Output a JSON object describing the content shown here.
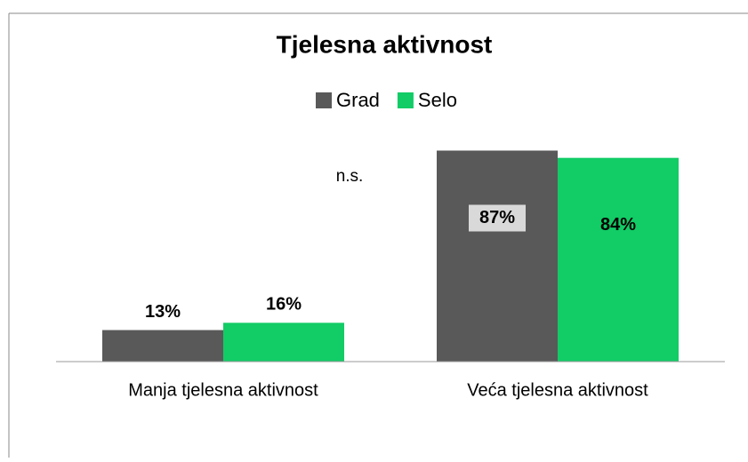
{
  "chart_data": {
    "type": "bar",
    "title": "Tjelesna aktivnost",
    "categories": [
      "Manja tjelesna aktivnost",
      "Veća tjelesna aktivnost"
    ],
    "series": [
      {
        "name": "Grad",
        "color": "#595959",
        "values": [
          13,
          87
        ],
        "value_labels": [
          "13%",
          "87%"
        ]
      },
      {
        "name": "Selo",
        "color": "#12cc66",
        "values": [
          16,
          84
        ],
        "value_labels": [
          "16%",
          "84%"
        ]
      }
    ],
    "ylim": [
      0,
      100
    ],
    "annotations": [
      "n.s."
    ]
  }
}
